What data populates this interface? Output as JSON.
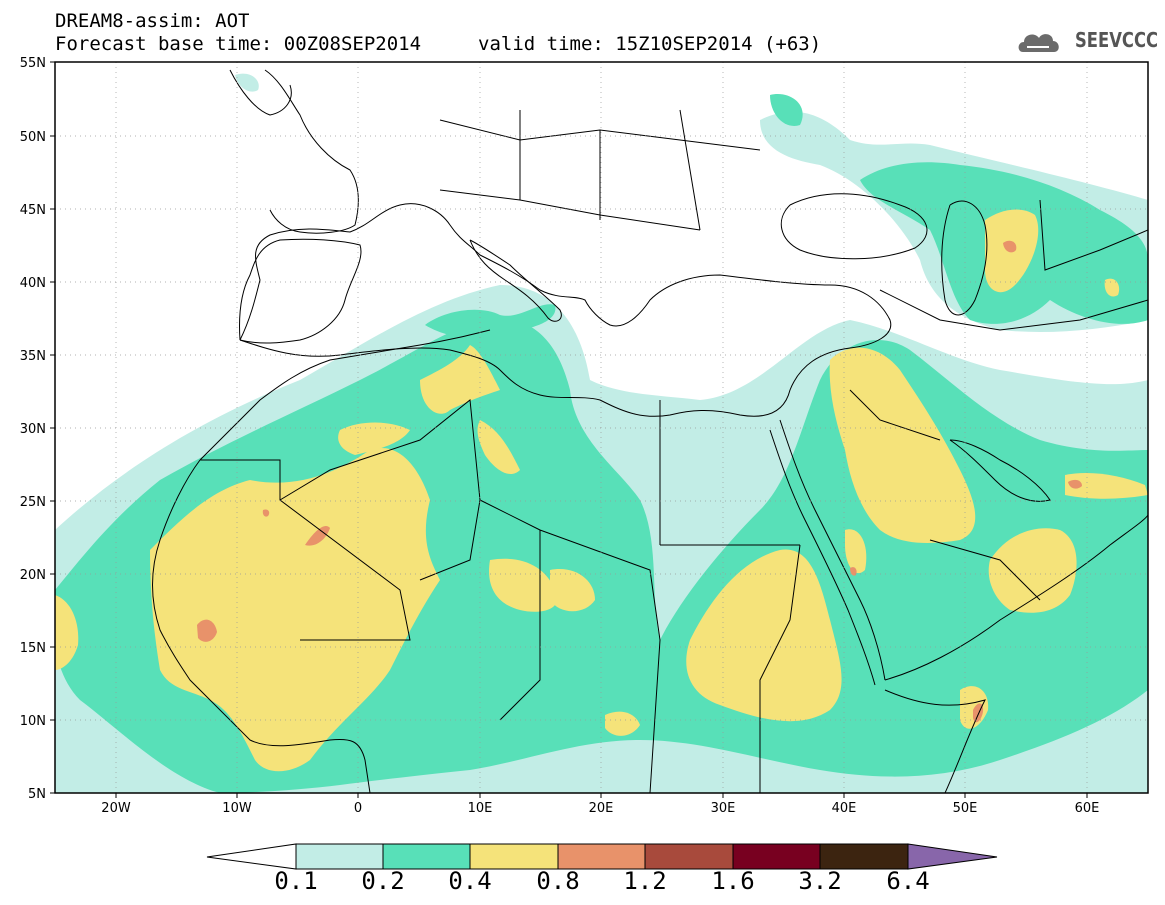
{
  "header": {
    "line1": "DREAM8-assim: AOT",
    "line2": "Forecast base time: 00Z08SEP2014",
    "valid": "valid time: 15Z10SEP2014 (+63)",
    "logo": "SEEVCCC"
  },
  "map": {
    "lat_labels": [
      "55N",
      "50N",
      "45N",
      "40N",
      "35N",
      "30N",
      "25N",
      "20N",
      "15N",
      "10N",
      "5N"
    ],
    "lon_labels": [
      "20W",
      "10W",
      "0",
      "10E",
      "20E",
      "30E",
      "40E",
      "50E",
      "60E"
    ],
    "lon_range": [
      -25,
      65
    ],
    "lat_range": [
      5,
      55
    ]
  },
  "colorbar": {
    "labels": [
      "0.1",
      "0.2",
      "0.4",
      "0.8",
      "1.2",
      "1.6",
      "3.2",
      "6.4"
    ],
    "colors": [
      "#c2ede6",
      "#58e0b8",
      "#f5e37a",
      "#e8926a",
      "#a84a3c",
      "#780020",
      "#3c2410",
      "#8866aa"
    ]
  },
  "colors": {
    "level_0_1": "#c2ede6",
    "level_0_2": "#58e0b8",
    "level_0_4": "#f5e37a",
    "level_0_8": "#e8926a"
  }
}
